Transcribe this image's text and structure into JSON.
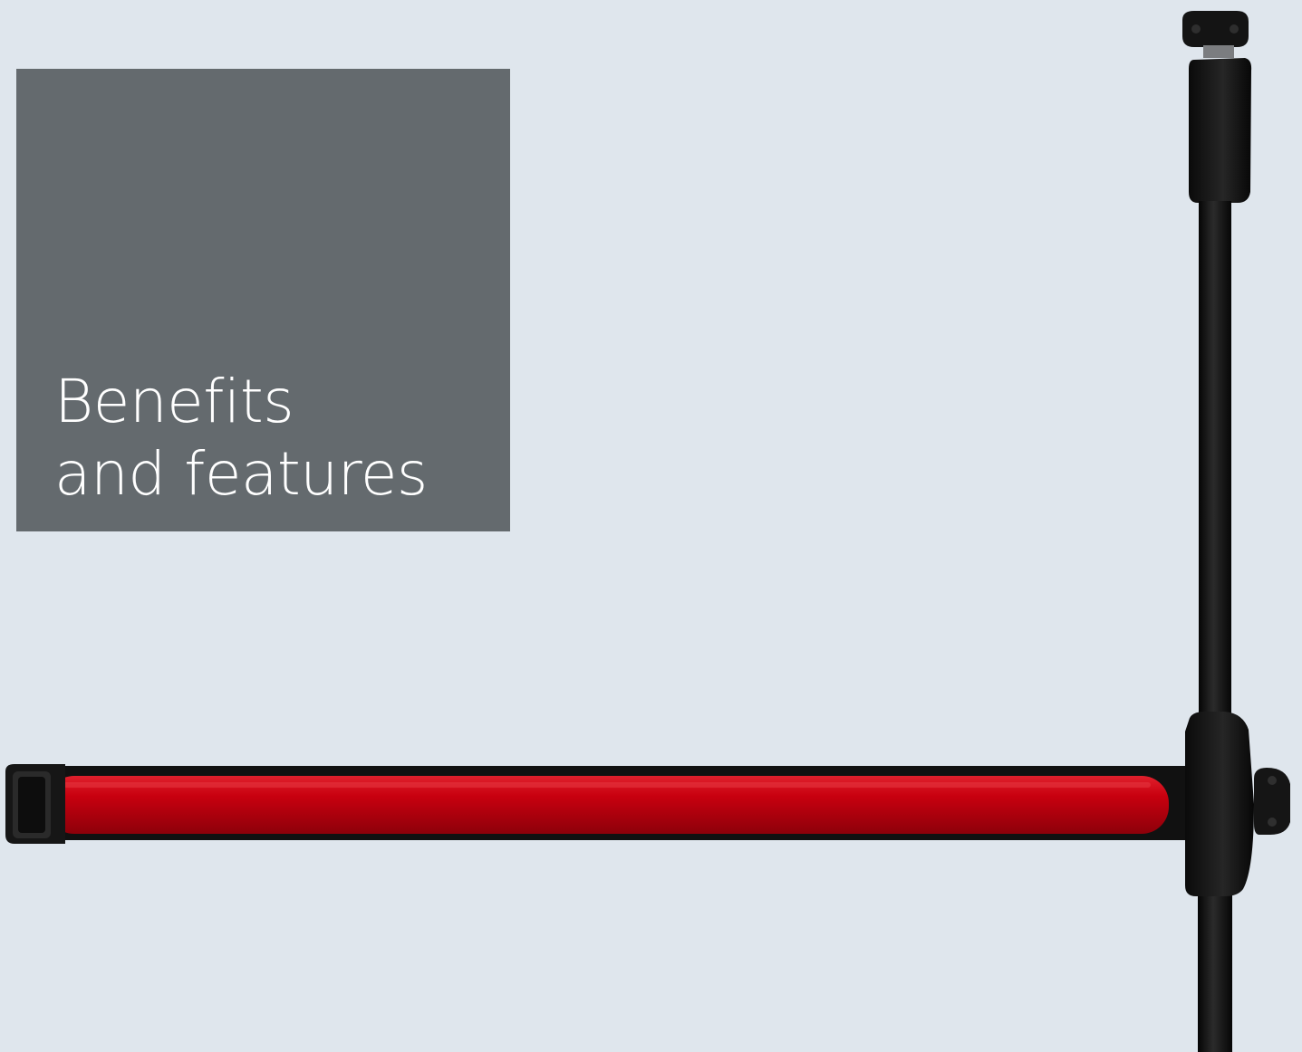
{
  "heading": {
    "line1": "Benefits",
    "line2": "and features"
  },
  "colors": {
    "background": "#dfe6ed",
    "title_box": "#646a6e",
    "title_text": "#ffffff",
    "push_bar_red": "#c8000f",
    "hardware_black": "#111111"
  },
  "product_image": {
    "icon": "panic-exit-bar-illustration"
  }
}
